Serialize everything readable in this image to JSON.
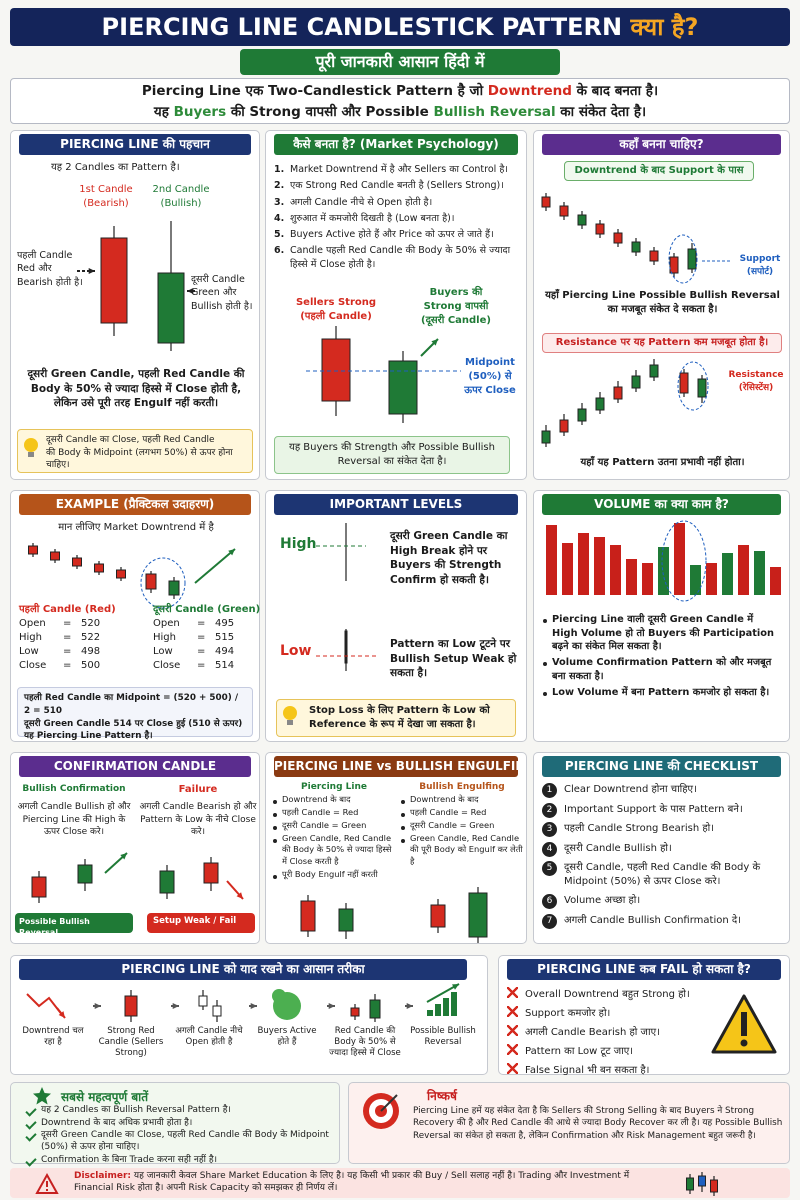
{
  "header": {
    "title": "PIERCING LINE CANDLESTICK PATTERN",
    "title_hindi": "क्या है?",
    "subtitle": "पूरी जानकारी आसान हिंदी में"
  },
  "intro": [
    [
      {
        "text": "Piercing Line एक Two-Candlestick Pattern है जो "
      },
      {
        "text": "Downtrend",
        "color": "#d42a1f"
      },
      {
        "text": " के बाद बनता है।"
      }
    ],
    [
      {
        "text": "यह "
      },
      {
        "text": "Buyers",
        "color": "#2e8b3a"
      },
      {
        "text": " की Strong वापसी और Possible "
      },
      {
        "text": "Bullish Reversal",
        "color": "#2e8b3a"
      },
      {
        "text": " का संकेत देता है।"
      }
    ]
  ],
  "identification": {
    "title": "PIERCING LINE की पहचान",
    "intro": "यह 2 Candles का Pattern है।",
    "candle1": [
      "1st Candle",
      "(Bearish)"
    ],
    "candle2": [
      "2nd Candle",
      "(Bullish)"
    ],
    "left_note": [
      "पहली Candle",
      "Red और",
      "Bearish होती है।"
    ],
    "right_note": [
      "दूसरी Candle",
      "Green और",
      "Bullish होती है।"
    ],
    "text": "दूसरी Green Candle, पहली Red Candle की Body के 50% से ज्यादा हिस्से में Close होती है, लेकिन उसे पूरी तरह Engulf नहीं करती।",
    "tip": [
      "दूसरी Candle का Close, पहली Red Candle",
      "की Body के Midpoint (लगभग 50%) से ऊपर होना चाहिए।"
    ]
  },
  "psychology": {
    "title": "कैसे बनता है? (Market Psychology)",
    "steps": [
      "Market Downtrend में है और Sellers का Control है।",
      "एक Strong Red Candle बनती है (Sellers Strong)।",
      "अगली Candle नीचे से Open होती है।",
      "शुरुआत में कमजोरी दिखती है (Low बनता है)।",
      "Buyers Active होते हैं और Price को ऊपर ले जाते हैं।",
      "Candle पहली Red Candle की Body के 50% से ज्यादा हिस्से में Close होती है।"
    ],
    "sellers": [
      "Sellers Strong",
      "(पहली Candle)"
    ],
    "buyers": [
      "Buyers की",
      "Strong वापसी",
      "(दूसरी Candle)"
    ],
    "midpoint": [
      "Midpoint",
      "(50%) से",
      "ऊपर Close"
    ],
    "note": "यह Buyers की Strength और Possible Bullish Reversal का संकेत देता है।"
  },
  "location": {
    "title": "कहाँ बनना चाहिए?",
    "tag_support": "Downtrend के बाद Support के पास",
    "support": [
      "Support",
      "(सपोर्ट)"
    ],
    "support_text": "यहाँ Piercing Line Possible Bullish Reversal का मजबूत संकेत दे सकता है।",
    "tag_resistance": "Resistance पर यह Pattern कम मजबूत होता है।",
    "resistance": [
      "Resistance",
      "(रेसिस्टेंस)"
    ],
    "resistance_text": "यहाँ यह Pattern उतना प्रभावी नहीं होता।"
  },
  "example": {
    "title": "EXAMPLE (प्रैक्टिकल उदाहरण)",
    "intro": "मान लीजिए Market Downtrend में है",
    "separator": "=",
    "candles": [
      {
        "name": "पहली Candle (Red)",
        "rows": [
          {
            "label": "Open",
            "value": 520
          },
          {
            "label": "High",
            "value": 522
          },
          {
            "label": "Low",
            "value": 498
          },
          {
            "label": "Close",
            "value": 500
          }
        ]
      },
      {
        "name": "दूसरी Candle (Green)",
        "rows": [
          {
            "label": "Open",
            "value": 495
          },
          {
            "label": "High",
            "value": 515
          },
          {
            "label": "Low",
            "value": 494
          },
          {
            "label": "Close",
            "value": 514
          }
        ]
      }
    ],
    "calc": [
      "पहली Red Candle का Midpoint = (520 + 500) / 2 = 510",
      "दूसरी Green Candle 514 पर Close हुई (510 से ऊपर)",
      "यह Piercing Line Pattern है।"
    ]
  },
  "levels": {
    "title": "IMPORTANT LEVELS",
    "high": "High",
    "high_text": "दूसरी Green Candle का High Break होने पर Buyers की Strength Confirm हो सकती है।",
    "low": "Low",
    "low_text": "Pattern का Low टूटने पर Bullish Setup Weak हो सकता है।",
    "tip": "Stop Loss के लिए Pattern के Low को Reference के रूप में देखा जा सकता है।"
  },
  "volume": {
    "title": "VOLUME का क्या काम है?",
    "points": [
      "Piercing Line वाली दूसरी Green Candle में High Volume हो तो Buyers की Participation बढ़ने का संकेत मिल सकता है।",
      "Volume Confirmation Pattern को और मजबूत बना सकता है।",
      "Low Volume में बना Pattern कमजोर हो सकता है।"
    ]
  },
  "confirmation": {
    "title": "CONFIRMATION CANDLE",
    "bullish": "Bullish Confirmation",
    "bullish_text": "अगली Candle Bullish हो और Piercing Line की High के ऊपर Close करे।",
    "failure": "Failure",
    "failure_text": "अगली Candle Bearish हो और Pattern के Low के नीचे Close करे।",
    "bullish_badge": "Possible Bullish Reversal",
    "failure_badge": "Setup Weak / Fail"
  },
  "comparison": {
    "title": "PIERCING LINE vs BULLISH ENGULFING",
    "columns": [
      {
        "name": "Piercing Line",
        "items": [
          "Downtrend के बाद",
          "पहली Candle = Red",
          "दूसरी Candle = Green",
          "Green Candle, Red Candle की Body के 50% से ज्यादा हिस्से में Close करती है",
          "पूरी Body Engulf नहीं करती"
        ]
      },
      {
        "name": "Bullish Engulfing",
        "items": [
          "Downtrend के बाद",
          "पहली Candle = Red",
          "दूसरी Candle = Green",
          "Green Candle, Red Candle की पूरी Body को Engulf कर लेती है"
        ]
      }
    ]
  },
  "checklist": {
    "title": "PIERCING LINE की CHECKLIST",
    "items": [
      "Clear Downtrend होना चाहिए।",
      "Important Support के पास Pattern बने।",
      "पहली Candle Strong Bearish हो।",
      "दूसरी Candle Bullish हो।",
      "दूसरी Candle, पहली Red Candle की Body के Midpoint (50%) से ऊपर Close करे।",
      "Volume अच्छा हो।",
      "अगली Candle Bullish Confirmation दे।"
    ]
  },
  "memory": {
    "title": "PIERCING LINE को याद रखने का आसान तरीका",
    "steps": [
      "Downtrend चल रहा है",
      "Strong Red Candle (Sellers Strong)",
      "अगली Candle नीचे Open होती है",
      "Buyers Active होते हैं",
      "Red Candle की Body के 50% से ज्यादा हिस्से में Close",
      "Possible Bullish Reversal"
    ]
  },
  "failure": {
    "title": "PIERCING LINE कब FAIL हो सकता है?",
    "items": [
      "Overall Downtrend बहुत Strong हो।",
      "Support कमजोर हो।",
      "अगली Candle Bearish हो जाए।",
      "Pattern का Low टूट जाए।",
      "False Signal भी बन सकता है।"
    ]
  },
  "key_points": {
    "title": "सबसे महत्वपूर्ण बातें",
    "items": [
      "यह 2 Candles का Bullish Reversal Pattern है।",
      "Downtrend के बाद अधिक प्रभावी होता है।",
      "दूसरी Green Candle का Close, पहली Red Candle की Body के Midpoint (50%) से ऊपर होना चाहिए।",
      "Confirmation के बिना Trade करना सही नहीं है।"
    ]
  },
  "conclusion": {
    "title": "निष्कर्ष",
    "text": "Piercing Line हमें यह संकेत देता है कि Sellers की Strong Selling के बाद Buyers ने Strong Recovery की है और Red Candle की आधे से ज्यादा Body Recover कर ली है। यह Possible Bullish Reversal का संकेत हो सकता है, लेकिन Confirmation और Risk Management बहुत जरूरी है।"
  },
  "disclaimer": {
    "label": "Disclaimer:",
    "text": "यह जानकारी केवल Share Market Education के लिए है। यह किसी भी प्रकार की Buy / Sell सलाह नहीं है। Trading और Investment में Financial Risk होता है। अपनी Risk Capacity को समझकर ही निर्णय लें।"
  }
}
